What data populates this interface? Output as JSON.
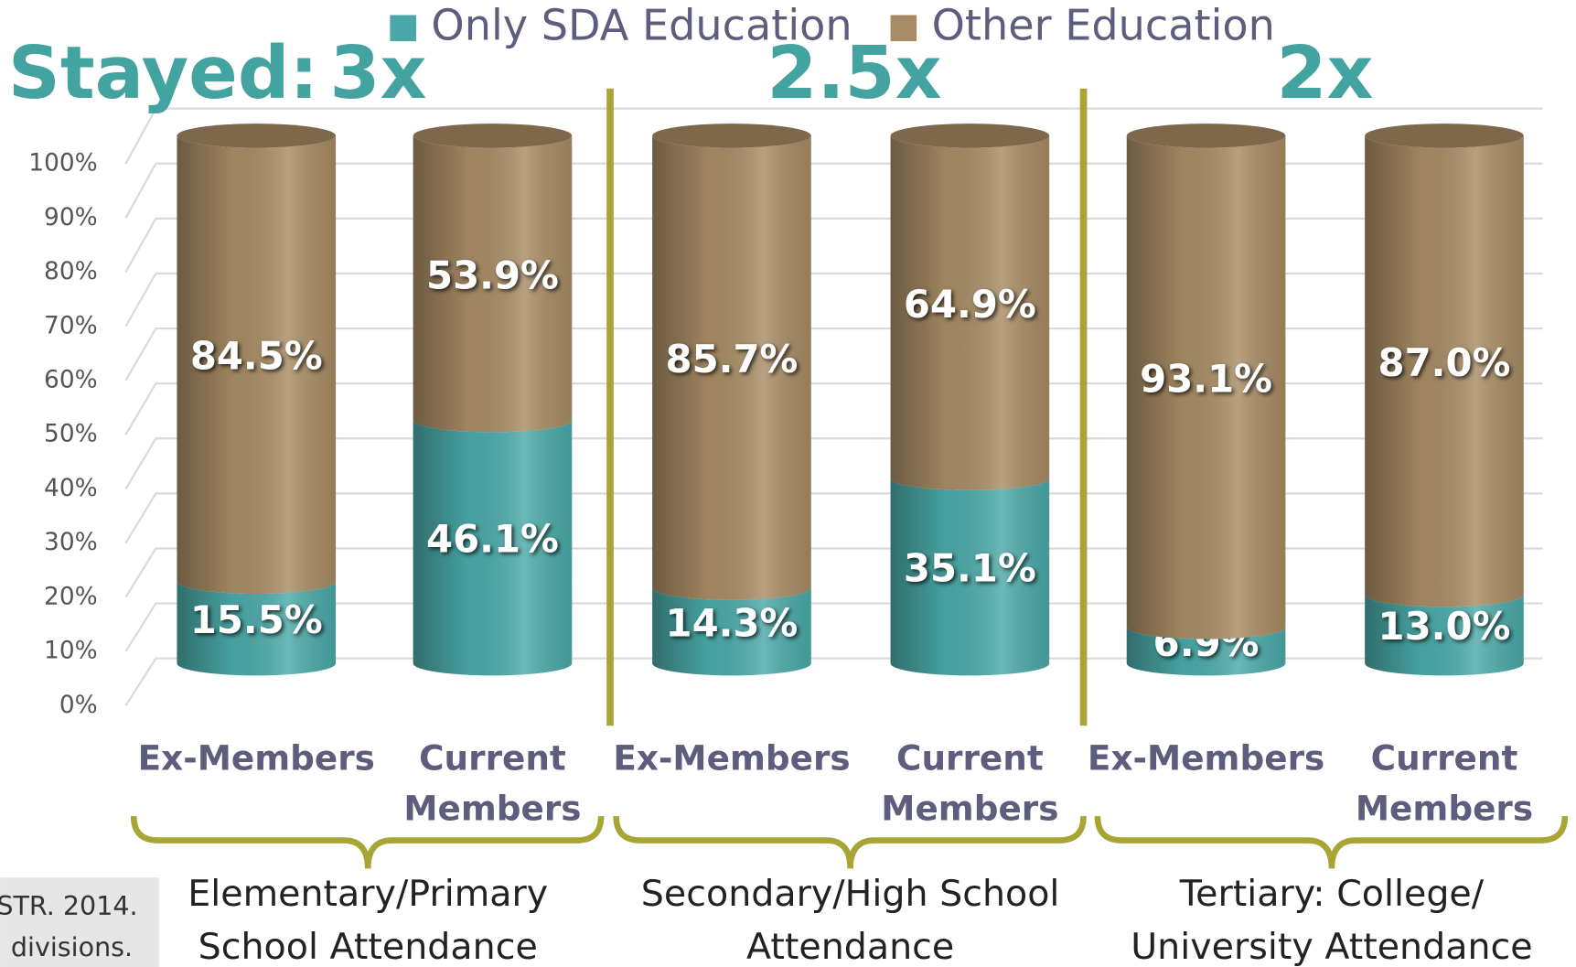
{
  "chart_data": {
    "type": "stacked_cylinder",
    "categories": [
      "Ex-Members",
      "Current Members",
      "Ex-Members",
      "Current Members",
      "Ex-Members",
      "Current Members"
    ],
    "groups": [
      "Elementary/Primary School Attendance",
      "Secondary/High School Attendance",
      "Tertiary: College/ University Attendance"
    ],
    "annotations": [
      "Stayed:",
      "3x",
      "2.5x",
      "2x"
    ],
    "source": [
      "STR. 2014.",
      "divisions."
    ],
    "series": [
      {
        "name": "Only SDA Education",
        "color": "#4aa9a8",
        "values": [
          15.5,
          46.1,
          14.3,
          35.1,
          6.9,
          13.0
        ],
        "value_labels": [
          "15.5%",
          "46.1%",
          "14.3%",
          "35.1%",
          "6.9%",
          "13.0%"
        ]
      },
      {
        "name": "Other Education",
        "color": "#a78b64",
        "values": [
          84.5,
          53.9,
          85.7,
          64.9,
          93.1,
          87.0
        ],
        "value_labels": [
          "84.5%",
          "53.9%",
          "85.7%",
          "64.9%",
          "93.1%",
          "87.0%"
        ]
      }
    ],
    "ylim": [
      0,
      100
    ],
    "yticks": [
      {
        "value": 0,
        "label": "0%"
      },
      {
        "value": 10,
        "label": "10%"
      },
      {
        "value": 20,
        "label": "20%"
      },
      {
        "value": 30,
        "label": "30%"
      },
      {
        "value": 40,
        "label": "40%"
      },
      {
        "value": 50,
        "label": "50%"
      },
      {
        "value": 60,
        "label": "60%"
      },
      {
        "value": 70,
        "label": "70%"
      },
      {
        "value": 80,
        "label": "80%"
      },
      {
        "value": 90,
        "label": "90%"
      },
      {
        "value": 100,
        "label": "100%"
      }
    ],
    "grid": true,
    "legend": "top"
  }
}
